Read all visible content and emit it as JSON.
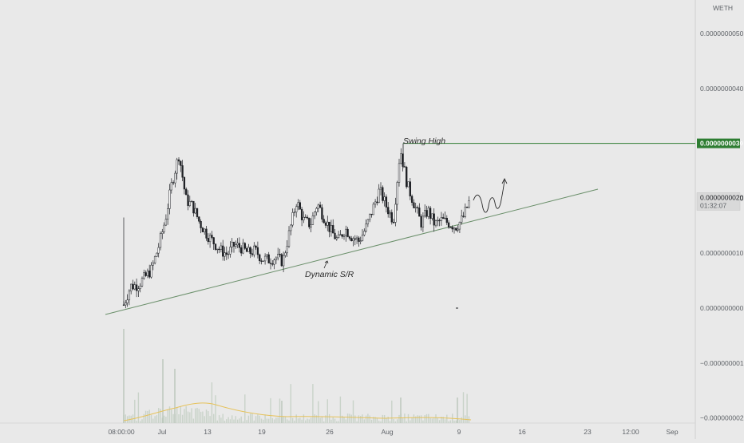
{
  "symbol": "WETH",
  "colors": {
    "background": "#e9e9e9",
    "candle": "#1f2125",
    "trendline": "#6a8f6a",
    "resistance": "#2e7d32",
    "volume": "#c9d3c9",
    "volume_ma": "#e6c25a",
    "axis_text": "#5f6368"
  },
  "chart_data": {
    "type": "candlestick",
    "title": "",
    "y_axis": {
      "ticks": [
        {
          "value": 5e-09,
          "label": "0.0000000050"
        },
        {
          "value": 4e-09,
          "label": "0.0000000040"
        },
        {
          "value": 3e-09,
          "label": "0.0000000030"
        },
        {
          "value": 2e-09,
          "label": "0.0000000020"
        },
        {
          "value": 1e-09,
          "label": "0.0000000010"
        },
        {
          "value": 0,
          "label": "0.0000000000"
        },
        {
          "value": -1e-09,
          "label": "−0.0000000010"
        },
        {
          "value": -2e-09,
          "label": "−0.0000000020"
        }
      ],
      "range": [
        -2.1e-09,
        5.6e-09
      ]
    },
    "x_axis": {
      "ticks": [
        "08:00:00",
        "Jul",
        "13",
        "19",
        "26",
        "Aug",
        "9",
        "16",
        "23",
        "12:00",
        "Sep"
      ]
    },
    "price_labels": [
      {
        "value": 3e-09,
        "label": "0.0000000030",
        "style": "resistance"
      },
      {
        "value": 2e-09,
        "label": "0.0000000020",
        "sub": "01:32:07",
        "style": "current"
      }
    ],
    "annotations": [
      {
        "text": "Swing High",
        "type": "horizontal-line",
        "value": 3e-09
      },
      {
        "text": "Dynamic S/R",
        "type": "trendline"
      }
    ],
    "price_path": [
      {
        "x": "Jun 27",
        "y": 6e-11
      },
      {
        "x": "Jun 28",
        "y": 4e-10
      },
      {
        "x": "Jun 29",
        "y": 4.2e-10
      },
      {
        "x": "Jun 30",
        "y": 5.5e-10
      },
      {
        "x": "Jul 1",
        "y": 7e-10
      },
      {
        "x": "Jul 2",
        "y": 1.1e-09
      },
      {
        "x": "Jul 3",
        "y": 1.6e-09
      },
      {
        "x": "Jul 4",
        "y": 2.3e-09
      },
      {
        "x": "Jul 5",
        "y": 2.8e-09
      },
      {
        "x": "Jul 6",
        "y": 1.98e-09
      },
      {
        "x": "Jul 7",
        "y": 1.85e-09
      },
      {
        "x": "Jul 8",
        "y": 1.55e-09
      },
      {
        "x": "Jul 9",
        "y": 1.35e-09
      },
      {
        "x": "Jul 10",
        "y": 1.2e-09
      },
      {
        "x": "Jul 11",
        "y": 1.05e-09
      },
      {
        "x": "Jul 12",
        "y": 9.8e-10
      },
      {
        "x": "Jul 13",
        "y": 1.15e-09
      },
      {
        "x": "Jul 14",
        "y": 1.1e-09
      },
      {
        "x": "Jul 15",
        "y": 1e-09
      },
      {
        "x": "Jul 16",
        "y": 1.05e-09
      },
      {
        "x": "Jul 17",
        "y": 9e-10
      },
      {
        "x": "Jul 18",
        "y": 8.8e-10
      },
      {
        "x": "Jul 19",
        "y": 9.2e-10
      },
      {
        "x": "Jul 20",
        "y": 8.5e-10
      },
      {
        "x": "Jul 21",
        "y": 1.4e-09
      },
      {
        "x": "Jul 22",
        "y": 1.95e-09
      },
      {
        "x": "Jul 23",
        "y": 1.6e-09
      },
      {
        "x": "Jul 24",
        "y": 1.52e-09
      },
      {
        "x": "Jul 25",
        "y": 1.9e-09
      },
      {
        "x": "Jul 26",
        "y": 1.65e-09
      },
      {
        "x": "Jul 27",
        "y": 1.4e-09
      },
      {
        "x": "Jul 28",
        "y": 1.22e-09
      },
      {
        "x": "Jul 29",
        "y": 1.45e-09
      },
      {
        "x": "Jul 30",
        "y": 1.3e-09
      },
      {
        "x": "Jul 31",
        "y": 1.22e-09
      },
      {
        "x": "Aug 1",
        "y": 1.45e-09
      },
      {
        "x": "Aug 2",
        "y": 1.8e-09
      },
      {
        "x": "Aug 3",
        "y": 2.15e-09
      },
      {
        "x": "Aug 4",
        "y": 1.85e-09
      },
      {
        "x": "Aug 5",
        "y": 1.6e-09
      },
      {
        "x": "Aug 6",
        "y": 2.9e-09
      },
      {
        "x": "Aug 7",
        "y": 2.25e-09
      },
      {
        "x": "Aug 8",
        "y": 1.9e-09
      },
      {
        "x": "Aug 9",
        "y": 1.55e-09
      },
      {
        "x": "Aug 10",
        "y": 1.78e-09
      },
      {
        "x": "Aug 11",
        "y": 1.52e-09
      },
      {
        "x": "Aug 12",
        "y": 1.6e-09
      },
      {
        "x": "Aug 13",
        "y": 1.55e-09
      },
      {
        "x": "Aug 14",
        "y": 1.48e-09
      },
      {
        "x": "Aug 15",
        "y": 1.62e-09
      },
      {
        "x": "Aug 16",
        "y": 1.95e-09
      }
    ]
  }
}
